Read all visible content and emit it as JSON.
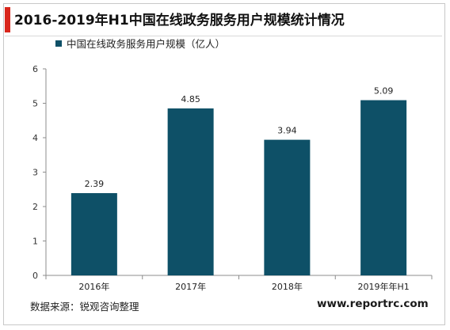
{
  "header": {
    "title": "2016-2019年H1中国在线政务服务用户规模统计情况"
  },
  "chart_data": {
    "type": "bar",
    "title": "2016-2019年H1中国在线政务服务用户规模统计情况",
    "categories": [
      "2016年",
      "2017年",
      "2018年",
      "2019年年H1"
    ],
    "series": [
      {
        "name": "中国在线政务服务用户规模（亿人）",
        "values": [
          2.39,
          4.85,
          3.94,
          5.09
        ]
      }
    ],
    "value_labels": [
      "2.39",
      "4.85",
      "3.94",
      "5.09"
    ],
    "yticks": [
      "0",
      "1",
      "2",
      "3",
      "4",
      "5",
      "6"
    ],
    "ylim": [
      0,
      6
    ],
    "xlabel": "",
    "ylabel": "",
    "grid": false,
    "legend_position": "top-left",
    "bar_color": "#0e5067"
  },
  "footer": {
    "source": "数据来源：锐观咨询整理",
    "site": "www.reportrc.com"
  }
}
